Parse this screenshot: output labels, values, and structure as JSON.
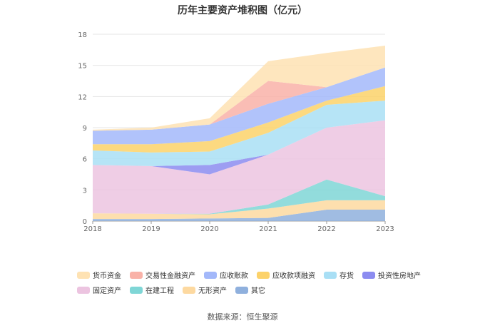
{
  "title": "历年主要资产堆积图（亿元）",
  "source": "数据来源：恒生聚源",
  "chart_data": {
    "type": "area",
    "stacked": true,
    "title": "历年主要资产堆积图（亿元）",
    "x": [
      "2018",
      "2019",
      "2020",
      "2021",
      "2022",
      "2023"
    ],
    "ylim": [
      0,
      18
    ],
    "yticks": [
      0,
      3,
      6,
      9,
      12,
      15,
      18
    ],
    "grid": true,
    "legend_position": "bottom",
    "series": [
      {
        "name": "其它",
        "color": "#8fb0dd",
        "values": [
          0.2,
          0.2,
          0.25,
          0.3,
          1.1,
          1.1
        ]
      },
      {
        "name": "无形资产",
        "color": "#fdd9a0",
        "values": [
          0.55,
          0.5,
          0.4,
          0.9,
          0.9,
          0.9
        ]
      },
      {
        "name": "在建工程",
        "color": "#7fd6d6",
        "values": [
          0.0,
          0.0,
          0.05,
          0.4,
          2.0,
          0.4
        ]
      },
      {
        "name": "固定资产",
        "color": "#ecc4e0",
        "values": [
          4.65,
          4.6,
          3.8,
          4.8,
          5.0,
          7.3
        ]
      },
      {
        "name": "投资性房地产",
        "color": "#8c8cf0",
        "values": [
          0.0,
          0.0,
          0.9,
          0.0,
          0.0,
          0.0
        ]
      },
      {
        "name": "存货",
        "color": "#a9dff5",
        "values": [
          1.4,
          1.3,
          1.3,
          2.1,
          2.2,
          1.9
        ]
      },
      {
        "name": "应收款项融资",
        "color": "#fcd26a",
        "values": [
          0.6,
          0.8,
          1.0,
          1.0,
          0.4,
          1.4
        ]
      },
      {
        "name": "应收账款",
        "color": "#a3b8fa",
        "values": [
          1.3,
          1.4,
          1.6,
          1.8,
          1.3,
          1.8
        ]
      },
      {
        "name": "交易性金融资产",
        "color": "#f9b2a8",
        "values": [
          0.0,
          0.0,
          0.0,
          2.2,
          0.0,
          0.0
        ]
      },
      {
        "name": "货币资金",
        "color": "#fee2b3",
        "values": [
          0.1,
          0.2,
          0.6,
          1.9,
          3.3,
          2.1
        ]
      }
    ],
    "legend_order": [
      "货币资金",
      "交易性金融资产",
      "应收账款",
      "应收款项融资",
      "存货",
      "投资性房地产",
      "固定资产",
      "在建工程",
      "无形资产",
      "其它"
    ]
  }
}
